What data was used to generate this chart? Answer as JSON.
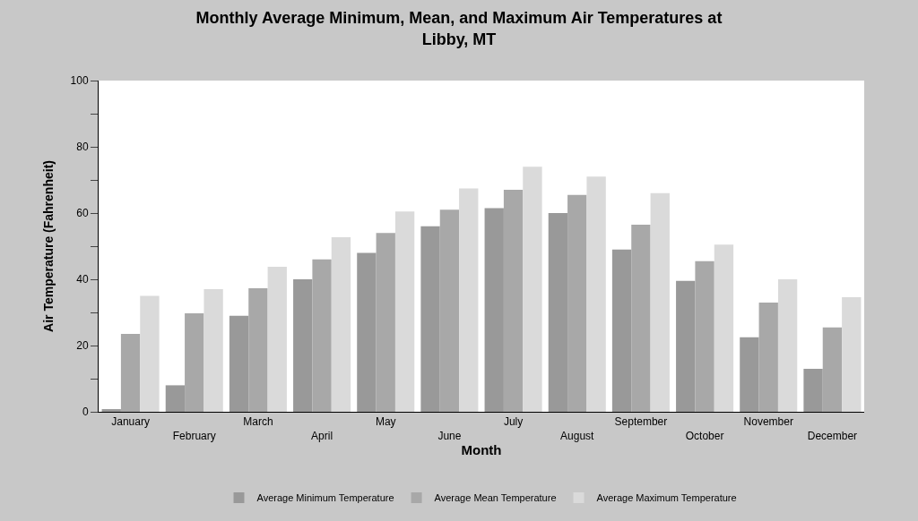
{
  "chart_data": {
    "type": "bar",
    "title": "Monthly Average Minimum, Mean, and Maximum Air Temperatures at\nLibby, MT",
    "xlabel": "Month",
    "ylabel": "Air Temperature (Fahrenheit)",
    "categories": [
      "January",
      "February",
      "March",
      "April",
      "May",
      "June",
      "July",
      "August",
      "September",
      "October",
      "November",
      "December"
    ],
    "series": [
      {
        "name": "Average Minimum Temperature",
        "color": "#999999",
        "values": [
          0.8,
          8,
          29,
          40,
          48,
          56,
          61.5,
          60,
          49,
          39.5,
          22.5,
          13
        ]
      },
      {
        "name": "Average Mean Temperature",
        "color": "#a8a8a8",
        "values": [
          23.5,
          29.7,
          37.3,
          46,
          54,
          61,
          67,
          65.5,
          56.5,
          45.5,
          33,
          25.5
        ]
      },
      {
        "name": "Average Maximum Temperature",
        "color": "#dadada",
        "values": [
          35,
          37,
          43.8,
          52.7,
          60.5,
          67.4,
          74,
          71,
          66,
          50.5,
          40,
          34.6
        ]
      }
    ],
    "ylim": [
      0,
      100
    ],
    "yticks": [
      0,
      {
        "value": 10,
        "label": null
      },
      20,
      {
        "value": 30,
        "label": null
      },
      40,
      {
        "value": 50,
        "label": null
      },
      60,
      {
        "value": 70,
        "label": null
      },
      80,
      {
        "value": 90,
        "label": null
      },
      100
    ],
    "legend": "bottom"
  }
}
